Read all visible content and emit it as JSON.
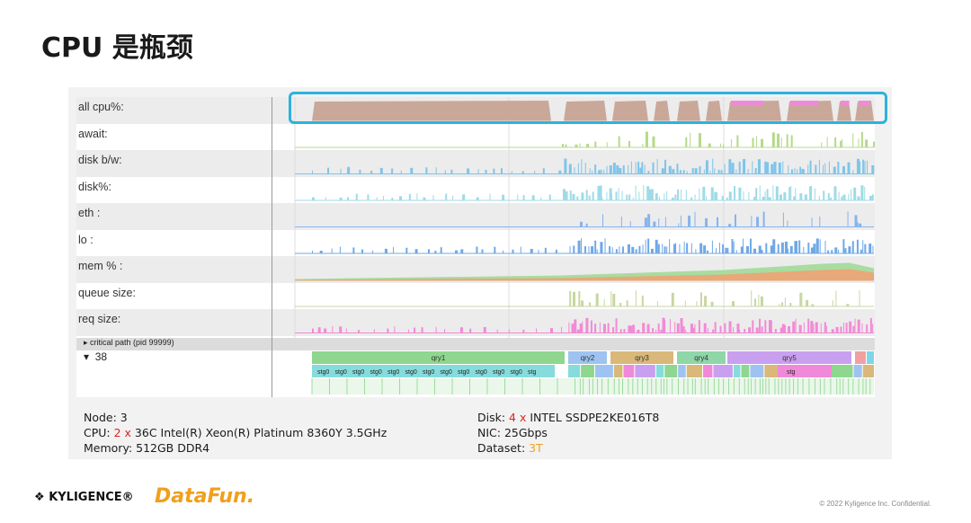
{
  "slide_title": "CPU 是瓶颈",
  "metric_rows": [
    {
      "label": "all cpu%:"
    },
    {
      "label": "await:"
    },
    {
      "label": "disk b/w:"
    },
    {
      "label": "disk%:"
    },
    {
      "label": "eth :"
    },
    {
      "label": "lo :"
    },
    {
      "label": "mem % :"
    },
    {
      "label": "queue size:"
    },
    {
      "label": "req size:"
    }
  ],
  "critical_path_label": "critical path (pid 99999)",
  "node_label": "38",
  "queries": [
    {
      "label": "qry1",
      "color": "#8fd68f"
    },
    {
      "label": "qry2",
      "color": "#9ec3f0"
    },
    {
      "label": "qry3",
      "color": "#d9b87a"
    },
    {
      "label": "qry4",
      "color": "#8fd6a8"
    },
    {
      "label": "qry5",
      "color": "#c9a0f0"
    }
  ],
  "stage_label": "stg0",
  "stage_label_short": "stg",
  "info_left": {
    "node": "Node: 3",
    "cpu_prefix": "CPU: ",
    "cpu_count": "2 x",
    "cpu_rest": " 36C Intel(R) Xeon(R) Platinum 8360Y 3.5GHz",
    "memory": "Memory: 512GB DDR4"
  },
  "info_right": {
    "disk_prefix": "Disk: ",
    "disk_count": "4 x",
    "disk_rest": " INTEL SSDPE2KE016T8",
    "nic": "NIC:  25Gbps",
    "dataset_prefix": "Dataset:  ",
    "dataset_value": "3T"
  },
  "footer": {
    "brand": "KYLIGENCE®",
    "partner": "DataFun.",
    "copyright": "© 2022 Kyligence Inc. Confidential."
  },
  "colors": {
    "cpu": "#c9a89a",
    "cpu_pink": "#f08ad8",
    "await": "#b5d98a",
    "disk": "#7fc4ea",
    "disk_pct": "#9fdbe6",
    "eth": "#86b4ee",
    "lo": "#6fa8e6",
    "mem_green": "#a8dca0",
    "mem_orange": "#e8a878",
    "queue": "#c7d7a0",
    "req": "#f28ad6",
    "highlight": "#2bb3dd"
  }
}
